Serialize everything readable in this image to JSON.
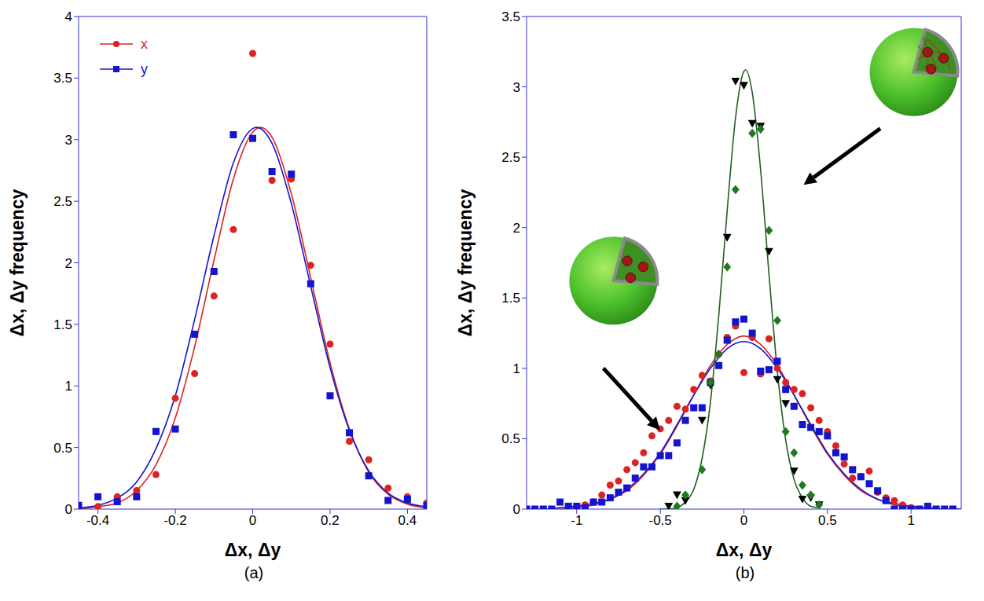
{
  "chart_data": [
    {
      "type": "scatter",
      "title": "(a)",
      "x_label": "Δx, Δy",
      "y_label": "Δx, Δy frequency",
      "xlim": [
        -0.45,
        0.45
      ],
      "xticks": [
        -0.4,
        -0.2,
        0,
        0.2,
        0.4
      ],
      "ylim": [
        0,
        4
      ],
      "yticks": [
        0,
        0.5,
        1,
        1.5,
        2,
        2.5,
        3,
        3.5,
        4
      ],
      "grid": false,
      "legend": "upper left",
      "series": [
        {
          "name": "x",
          "type": "scatter",
          "color": "#dd2222",
          "marker": "circle",
          "x": [
            -0.4,
            -0.35,
            -0.3,
            -0.25,
            -0.2,
            -0.15,
            -0.1,
            -0.05,
            0,
            0.05,
            0.1,
            0.15,
            0.2,
            0.25,
            0.3,
            0.35,
            0.4,
            0.45
          ],
          "values": [
            0.02,
            0.1,
            0.15,
            0.28,
            0.9,
            1.1,
            1.73,
            2.27,
            3.7,
            2.67,
            2.68,
            1.98,
            1.34,
            0.55,
            0.4,
            0.17,
            0.1,
            0.05
          ]
        },
        {
          "name": "y",
          "type": "scatter",
          "color": "#1414cc",
          "marker": "square",
          "x": [
            -0.45,
            -0.4,
            -0.35,
            -0.3,
            -0.25,
            -0.2,
            -0.15,
            -0.1,
            -0.05,
            0,
            0.05,
            0.1,
            0.15,
            0.2,
            0.25,
            0.3,
            0.35,
            0.4,
            0.45
          ],
          "values": [
            0.03,
            0.1,
            0.06,
            0.1,
            0.63,
            0.65,
            1.42,
            1.93,
            3.04,
            3.01,
            2.74,
            2.72,
            1.83,
            0.92,
            0.62,
            0.27,
            0.07,
            0.08,
            0.03
          ]
        },
        {
          "type": "line",
          "color": "#dd2222",
          "x": [
            -0.45,
            -0.4,
            -0.35,
            -0.3,
            -0.25,
            -0.2,
            -0.15,
            -0.1,
            -0.05,
            0,
            0.02,
            0.05,
            0.1,
            0.15,
            0.2,
            0.25,
            0.3,
            0.35,
            0.4,
            0.45
          ],
          "values": [
            0,
            0.02,
            0.05,
            0.15,
            0.36,
            0.74,
            1.32,
            2.02,
            2.68,
            3.06,
            3.1,
            3.02,
            2.56,
            1.88,
            1.19,
            0.65,
            0.3,
            0.12,
            0.04,
            0.01
          ]
        },
        {
          "type": "line",
          "color": "#1414cc",
          "x": [
            -0.45,
            -0.4,
            -0.35,
            -0.3,
            -0.25,
            -0.2,
            -0.15,
            -0.1,
            -0.05,
            0,
            0.01,
            0.05,
            0.1,
            0.15,
            0.2,
            0.25,
            0.3,
            0.35,
            0.4,
            0.45
          ],
          "values": [
            0.01,
            0.03,
            0.09,
            0.22,
            0.49,
            0.92,
            1.54,
            2.22,
            2.81,
            3.09,
            3.1,
            2.97,
            2.48,
            1.81,
            1.15,
            0.64,
            0.31,
            0.13,
            0.05,
            0.02
          ]
        }
      ]
    },
    {
      "type": "scatter",
      "title": "(b)",
      "x_label": "Δx, Δy",
      "y_label": "Δx, Δy frequency",
      "xlim": [
        -1.3,
        1.3
      ],
      "xticks": [
        -1,
        -0.5,
        0,
        0.5,
        1
      ],
      "ylim": [
        0,
        3.5
      ],
      "yticks": [
        0,
        0.5,
        1,
        1.5,
        2,
        2.5,
        3,
        3.5
      ],
      "grid": false,
      "series": [
        {
          "type": "scatter",
          "color": "#dd2222",
          "marker": "circle",
          "x": [
            -1,
            -0.95,
            -0.9,
            -0.85,
            -0.8,
            -0.75,
            -0.7,
            -0.65,
            -0.6,
            -0.55,
            -0.5,
            -0.45,
            -0.4,
            -0.35,
            -0.3,
            -0.25,
            -0.2,
            -0.15,
            -0.1,
            -0.05,
            0,
            0.05,
            0.1,
            0.15,
            0.2,
            0.25,
            0.3,
            0.35,
            0.4,
            0.45,
            0.5,
            0.55,
            0.6,
            0.65,
            0.7,
            0.75,
            0.8,
            0.85,
            0.9,
            0.95,
            1
          ],
          "values": [
            0.02,
            0.03,
            0.05,
            0.1,
            0.17,
            0.2,
            0.28,
            0.33,
            0.4,
            0.52,
            0.57,
            0.63,
            0.73,
            0.71,
            0.85,
            0.95,
            0.91,
            1.1,
            1.22,
            1.3,
            0.97,
            1.22,
            0.96,
            1.21,
            1,
            0.9,
            0.85,
            0.82,
            0.72,
            0.63,
            0.55,
            0.45,
            0.32,
            0.22,
            0.23,
            0.27,
            0.12,
            0.08,
            0.06,
            0.03,
            0.01
          ]
        },
        {
          "type": "scatter",
          "color": "#1414cc",
          "marker": "square",
          "x": [
            -1.3,
            -1.25,
            -1.2,
            -1.15,
            -1.1,
            -1.05,
            -1,
            -0.95,
            -0.9,
            -0.85,
            -0.8,
            -0.75,
            -0.7,
            -0.65,
            -0.6,
            -0.55,
            -0.5,
            -0.45,
            -0.4,
            -0.35,
            -0.3,
            -0.25,
            -0.2,
            -0.15,
            -0.1,
            -0.05,
            0,
            0.05,
            0.1,
            0.15,
            0.2,
            0.25,
            0.3,
            0.35,
            0.4,
            0.45,
            0.5,
            0.55,
            0.6,
            0.65,
            0.7,
            0.75,
            0.8,
            0.85,
            0.9,
            0.95,
            1,
            1.05,
            1.1,
            1.15,
            1.2,
            1.25
          ],
          "values": [
            0,
            0,
            0,
            0,
            0.05,
            0.02,
            0.02,
            0.01,
            0.05,
            0.05,
            0.08,
            0.12,
            0.15,
            0.22,
            0.3,
            0.3,
            0.38,
            0.38,
            0.47,
            0.63,
            0.72,
            0.72,
            0.9,
            1.02,
            1.2,
            1.33,
            1.35,
            1.25,
            0.98,
            0.99,
            1.05,
            0.85,
            0.73,
            0.6,
            0.58,
            0.55,
            0.52,
            0.4,
            0.37,
            0.28,
            0.23,
            0.18,
            0.13,
            0.06,
            0,
            0,
            0,
            0,
            0.02,
            0,
            0,
            0
          ]
        },
        {
          "type": "scatter",
          "color": "#000000",
          "marker": "triangle-down",
          "x": [
            -0.45,
            -0.4,
            -0.35,
            -0.25,
            -0.2,
            -0.1,
            -0.05,
            0,
            0.05,
            0.1,
            0.15,
            0.2,
            0.25,
            0.3,
            0.35,
            0.4,
            0.45
          ],
          "values": [
            0.02,
            0.1,
            0.06,
            0.63,
            0.88,
            1.93,
            3.04,
            3.01,
            2.74,
            2.72,
            1.83,
            0.92,
            0.75,
            0.27,
            0.07,
            0.08,
            0.03
          ]
        },
        {
          "type": "scatter",
          "color": "#1f7a1f",
          "marker": "diamond",
          "x": [
            -0.4,
            -0.35,
            -0.25,
            -0.2,
            -0.15,
            -0.1,
            -0.05,
            0.05,
            0.1,
            0.15,
            0.2,
            0.25,
            0.3,
            0.35,
            0.4,
            0.45
          ],
          "values": [
            0.02,
            0.1,
            0.28,
            0.9,
            1.1,
            1.72,
            2.27,
            2.67,
            2.7,
            1.98,
            1.34,
            0.55,
            0.4,
            0.17,
            0.1,
            0.03
          ]
        },
        {
          "type": "line",
          "color": "#dd2222",
          "x": [
            -1.3,
            -1.2,
            -1.1,
            -1,
            -0.9,
            -0.8,
            -0.7,
            -0.6,
            -0.5,
            -0.4,
            -0.3,
            -0.2,
            -0.1,
            0,
            0.1,
            0.2,
            0.3,
            0.4,
            0.5,
            0.6,
            0.7,
            0.8,
            0.9,
            1,
            1.1,
            1.2,
            1.3
          ],
          "values": [
            0,
            0,
            0,
            0.01,
            0.03,
            0.07,
            0.13,
            0.24,
            0.39,
            0.59,
            0.81,
            1.02,
            1.17,
            1.23,
            1.17,
            1.02,
            0.81,
            0.59,
            0.39,
            0.24,
            0.13,
            0.07,
            0.03,
            0.01,
            0,
            0,
            0
          ]
        },
        {
          "type": "line",
          "color": "#1414cc",
          "x": [
            -1.3,
            -1.2,
            -1.1,
            -1,
            -0.9,
            -0.8,
            -0.7,
            -0.6,
            -0.5,
            -0.4,
            -0.3,
            -0.2,
            -0.1,
            0,
            0.1,
            0.2,
            0.3,
            0.4,
            0.5,
            0.6,
            0.7,
            0.8,
            0.9,
            1,
            1.1,
            1.2,
            1.3
          ],
          "values": [
            0,
            0,
            0.01,
            0.02,
            0.04,
            0.07,
            0.14,
            0.25,
            0.4,
            0.6,
            0.81,
            1,
            1.14,
            1.19,
            1.14,
            1,
            0.81,
            0.6,
            0.4,
            0.25,
            0.14,
            0.07,
            0.04,
            0.02,
            0.01,
            0,
            0
          ]
        },
        {
          "type": "line",
          "color": "#1f5f1f",
          "x": [
            -0.5,
            -0.45,
            -0.4,
            -0.35,
            -0.3,
            -0.25,
            -0.2,
            -0.15,
            -0.1,
            -0.05,
            0,
            0.01,
            0.05,
            0.1,
            0.15,
            0.2,
            0.25,
            0.3,
            0.35,
            0.4,
            0.45
          ],
          "values": [
            0,
            0,
            0.01,
            0.05,
            0.14,
            0.36,
            0.76,
            1.38,
            2.12,
            2.78,
            3.11,
            3.12,
            2.96,
            2.41,
            1.67,
            0.98,
            0.49,
            0.21,
            0.08,
            0.02,
            0.01
          ]
        }
      ]
    }
  ]
}
